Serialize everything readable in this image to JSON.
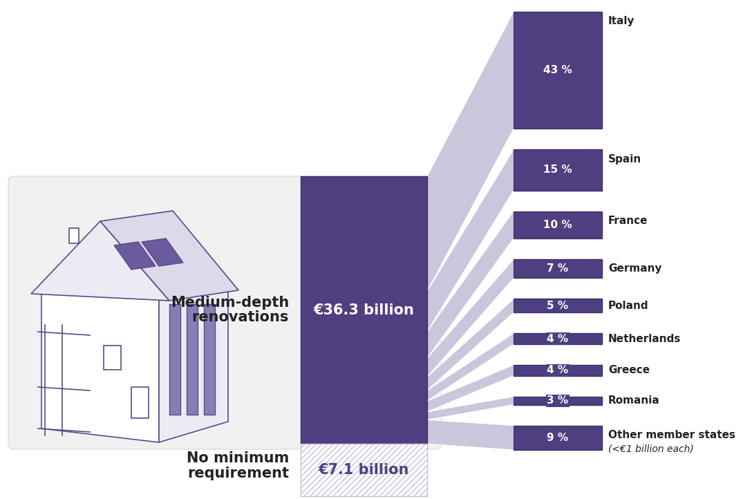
{
  "chart_data": {
    "type": "bar_of_bar",
    "main": {
      "categories": [
        "Medium-depth\nrenovations",
        "No minimum\nrequirement"
      ],
      "values": [
        36.3,
        7.1
      ],
      "value_labels": [
        "€36.3 billion",
        "€7.1 billion"
      ],
      "colors": [
        "#4f3f80",
        "#ffffff"
      ]
    },
    "breakdown": {
      "categories": [
        "Italy",
        "Spain",
        "France",
        "Germany",
        "Poland",
        "Netherlands",
        "Greece",
        "Romania",
        "Other member states"
      ],
      "values": [
        43,
        15,
        10,
        7,
        5,
        4,
        4,
        3,
        9
      ],
      "value_labels": [
        "43 %",
        "15 %",
        "10 %",
        "7 %",
        "5 %",
        "4 %",
        "4 %",
        "3 %",
        "9 %"
      ],
      "color": "#4f3f80"
    },
    "annotations": [
      "(<€1 billion each)"
    ],
    "data_labels": true,
    "tick_labels": false
  }
}
